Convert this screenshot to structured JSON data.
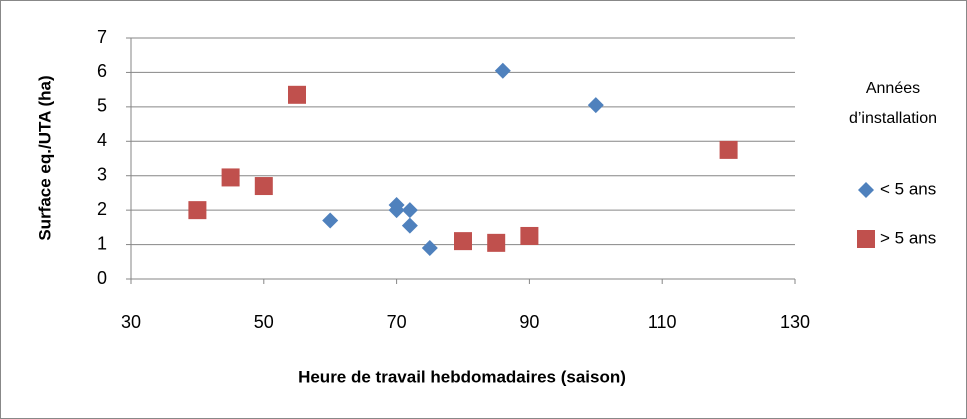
{
  "chart_data": {
    "type": "scatter",
    "x_label": "Heure de travail hebdomadaires (saison)",
    "y_label": "Surface eq./UTA (ha)",
    "legend_title": "Années d’installation",
    "xlim": [
      30,
      130
    ],
    "xticks": [
      30,
      50,
      70,
      90,
      110,
      130
    ],
    "ylim": [
      0,
      7
    ],
    "yticks": [
      0,
      1,
      2,
      3,
      4,
      5,
      6,
      7
    ],
    "grid": true,
    "legend": "right",
    "series": [
      {
        "name": "< 5 ans",
        "color": "#4f81bd",
        "marker": "diamond",
        "x": [
          86,
          100,
          60,
          70,
          70,
          72,
          72,
          75
        ],
        "values": [
          6.05,
          5.05,
          1.7,
          2.15,
          2.0,
          2.0,
          1.55,
          0.9
        ]
      },
      {
        "name": "> 5 ans",
        "color": "#c0504d",
        "marker": "square",
        "x": [
          40,
          45,
          50,
          55,
          80,
          85,
          90,
          120
        ],
        "values": [
          2.0,
          2.95,
          2.7,
          5.35,
          1.1,
          1.05,
          1.25,
          3.75
        ]
      }
    ]
  }
}
